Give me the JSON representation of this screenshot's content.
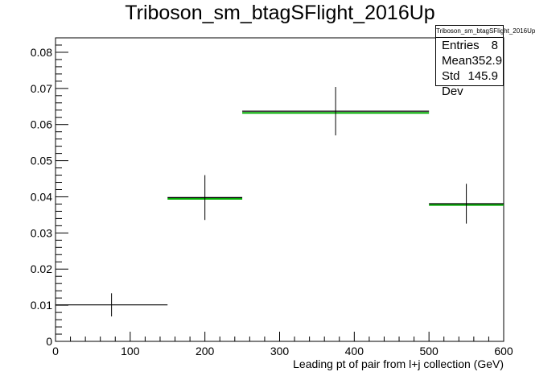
{
  "chart_data": {
    "type": "histogram",
    "title": "Triboson_sm_btagSFlight_2016Up",
    "xlabel": "Leading pt of pair from l+j collection (GeV)",
    "ylabel": "",
    "xlim": [
      0,
      600
    ],
    "ylim": [
      0,
      0.084
    ],
    "x_ticks": [
      0,
      100,
      200,
      300,
      400,
      500,
      600
    ],
    "x_tick_labels": [
      "0",
      "100",
      "200",
      "300",
      "400",
      "500",
      "600"
    ],
    "y_ticks": [
      0,
      0.01,
      0.02,
      0.03,
      0.04,
      0.05,
      0.06,
      0.07,
      0.08
    ],
    "y_tick_labels": [
      "0",
      "0.01",
      "0.02",
      "0.03",
      "0.04",
      "0.05",
      "0.06",
      "0.07",
      "0.08"
    ],
    "series": [
      {
        "color": "#000000",
        "bins": [
          {
            "x_low": 0,
            "x_high": 150,
            "x_center": 75,
            "y": 0.0101,
            "y_err": 0.0032
          },
          {
            "x_low": 150,
            "x_high": 250,
            "x_center": 200,
            "y": 0.0398,
            "y_err": 0.0062
          },
          {
            "x_low": 250,
            "x_high": 500,
            "x_center": 375,
            "y": 0.0637,
            "y_err": 0.0067
          },
          {
            "x_low": 500,
            "x_high": 600,
            "x_center": 550,
            "y": 0.0381,
            "y_err": 0.0055
          }
        ]
      },
      {
        "color": "#00aa00",
        "bins": [
          {
            "x_low": 150,
            "x_high": 250,
            "y": 0.0401
          },
          {
            "x_low": 250,
            "x_high": 500,
            "y": 0.0639
          },
          {
            "x_low": 500,
            "x_high": 600,
            "y": 0.0384
          }
        ]
      }
    ],
    "stats": {
      "name": "Triboson_sm_btagSFlight_2016Up",
      "entries_label": "Entries",
      "entries": "8",
      "mean_label": "Mean",
      "mean": "352.9",
      "stddev_label": "Std Dev",
      "stddev": "145.9"
    },
    "grid": false,
    "legend_position": "top-right"
  }
}
